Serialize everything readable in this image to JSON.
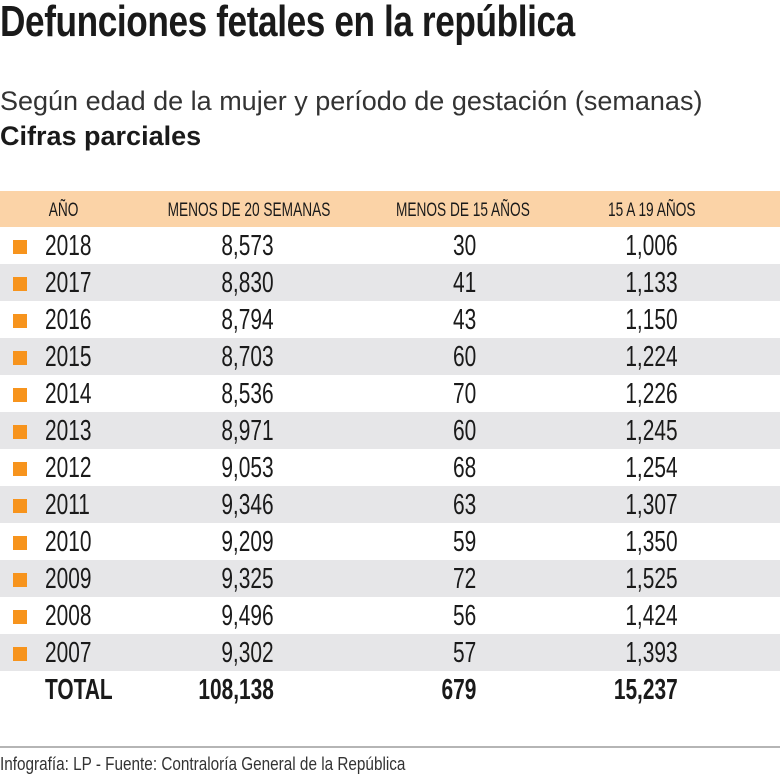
{
  "header": {
    "title": "Defunciones fetales en la república",
    "subtitle": "Según edad de la mujer y período de gestación (semanas)",
    "note": "Cifras parciales"
  },
  "colors": {
    "header_band": "#fbd3a7",
    "row_alt": "#e6e6e8",
    "marker": "#f7941d"
  },
  "chart_data": {
    "type": "table",
    "columns": [
      "AÑO",
      "MENOS DE 20 SEMANAS",
      "MENOS DE 15 AÑOS",
      "15 A 19 AÑOS"
    ],
    "rows": [
      [
        "2018",
        "8,573",
        "30",
        "1,006"
      ],
      [
        "2017",
        "8,830",
        "41",
        "1,133"
      ],
      [
        "2016",
        "8,794",
        "43",
        "1,150"
      ],
      [
        "2015",
        "8,703",
        "60",
        "1,224"
      ],
      [
        "2014",
        "8,536",
        "70",
        "1,226"
      ],
      [
        "2013",
        "8,971",
        "60",
        "1,245"
      ],
      [
        "2012",
        "9,053",
        "68",
        "1,254"
      ],
      [
        "2011",
        "9,346",
        "63",
        "1,307"
      ],
      [
        "2010",
        "9,209",
        "59",
        "1,350"
      ],
      [
        "2009",
        "9,325",
        "72",
        "1,525"
      ],
      [
        "2008",
        "9,496",
        "56",
        "1,424"
      ],
      [
        "2007",
        "9,302",
        "57",
        "1,393"
      ]
    ],
    "total": [
      "TOTAL",
      "108,138",
      "679",
      "15,237"
    ]
  },
  "footer": {
    "source": "Infografía: LP - Fuente: Contraloría General de la República"
  }
}
